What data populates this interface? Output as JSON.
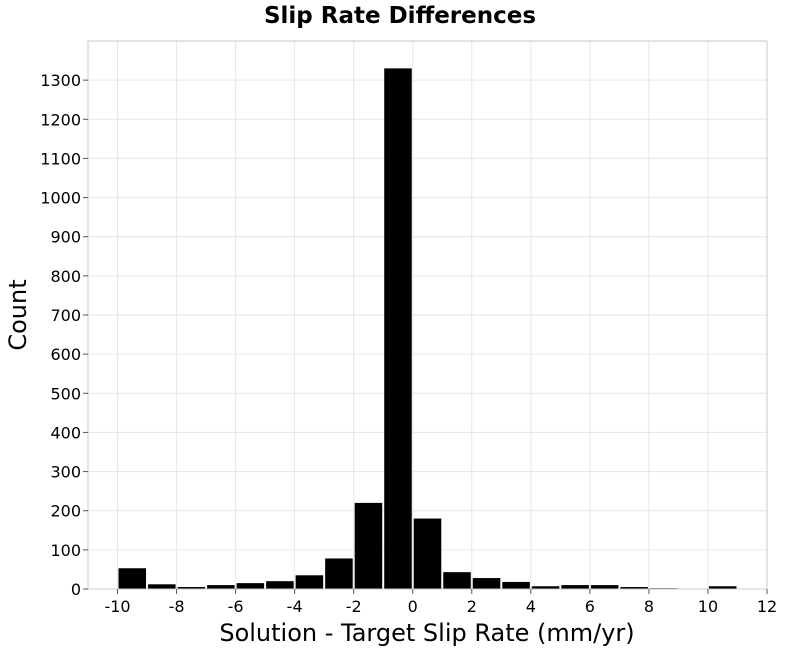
{
  "chart_data": {
    "type": "bar",
    "title": "Slip Rate Differences",
    "xlabel": "Solution - Target Slip Rate (mm/yr)",
    "ylabel": "Count",
    "bar_color": "#000000",
    "grid": true,
    "xlim": [
      -11,
      12
    ],
    "ylim": [
      0,
      1400
    ],
    "xticks": [
      -10,
      -8,
      -6,
      -4,
      -2,
      0,
      2,
      4,
      6,
      8,
      10,
      12
    ],
    "xtick_labels": [
      "-10",
      "-8",
      "-6",
      "-4",
      "-2",
      "0",
      "2",
      "4",
      "6",
      "8",
      "10",
      "12"
    ],
    "yticks": [
      0,
      100,
      200,
      300,
      400,
      500,
      600,
      700,
      800,
      900,
      1000,
      1100,
      1200,
      1300
    ],
    "ytick_labels": [
      "0",
      "100",
      "200",
      "300",
      "400",
      "500",
      "600",
      "700",
      "800",
      "900",
      "1000",
      "1100",
      "1200",
      "1300"
    ],
    "bin_width": 1,
    "x": [
      -9.5,
      -8.5,
      -7.5,
      -6.5,
      -5.5,
      -4.5,
      -3.5,
      -2.5,
      -1.5,
      -0.5,
      0.5,
      1.5,
      2.5,
      3.5,
      4.5,
      5.5,
      6.5,
      7.5,
      8.5,
      9.5,
      10.5
    ],
    "values": [
      53,
      12,
      5,
      10,
      15,
      20,
      35,
      78,
      220,
      1330,
      180,
      43,
      28,
      18,
      7,
      10,
      10,
      5,
      2,
      1,
      7
    ]
  }
}
